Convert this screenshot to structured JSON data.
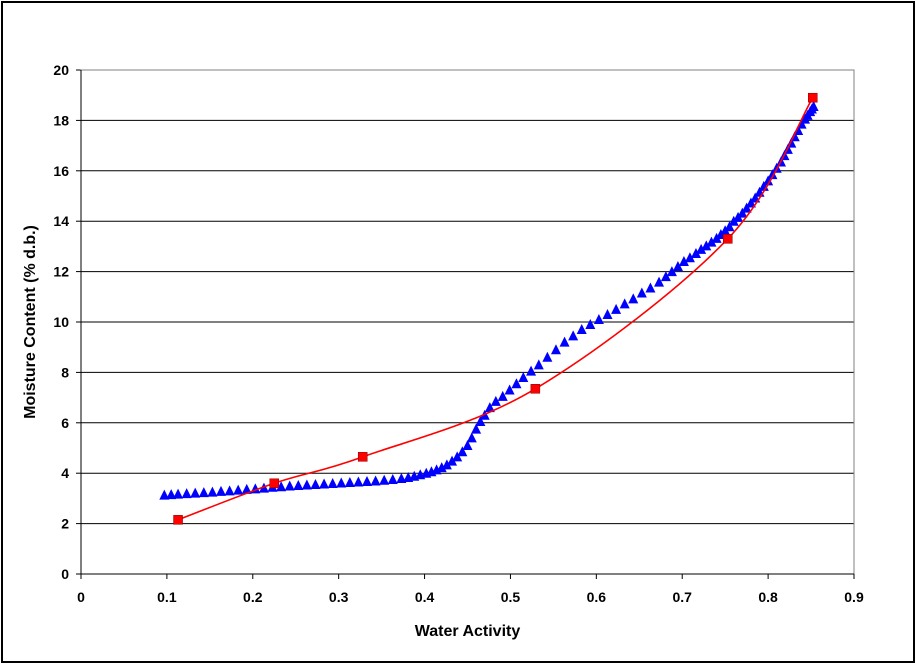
{
  "chart_data": {
    "type": "scatter",
    "title": "",
    "xlabel": "Water Activity",
    "ylabel": "Moisture Content (% d.b.)",
    "xlim": [
      0,
      0.9
    ],
    "ylim": [
      0,
      20
    ],
    "xticks": [
      "0",
      "0.1",
      "0.2",
      "0.3",
      "0.4",
      "0.5",
      "0.6",
      "0.7",
      "0.8",
      "0.9"
    ],
    "yticks": [
      "0",
      "2",
      "4",
      "6",
      "8",
      "10",
      "12",
      "14",
      "16",
      "18",
      "20"
    ],
    "grid": "horizontal",
    "legend": "none",
    "series": [
      {
        "marker": "triangle",
        "color": "#0000ff",
        "line": false,
        "x": [
          0.097,
          0.105,
          0.113,
          0.123,
          0.133,
          0.143,
          0.153,
          0.163,
          0.173,
          0.183,
          0.193,
          0.203,
          0.213,
          0.223,
          0.233,
          0.243,
          0.253,
          0.263,
          0.273,
          0.283,
          0.293,
          0.303,
          0.313,
          0.323,
          0.333,
          0.343,
          0.353,
          0.363,
          0.373,
          0.381,
          0.388,
          0.395,
          0.402,
          0.408,
          0.414,
          0.42,
          0.426,
          0.432,
          0.438,
          0.444,
          0.45,
          0.455,
          0.46,
          0.465,
          0.47,
          0.476,
          0.483,
          0.491,
          0.499,
          0.507,
          0.515,
          0.524,
          0.533,
          0.543,
          0.553,
          0.563,
          0.573,
          0.583,
          0.593,
          0.603,
          0.613,
          0.623,
          0.633,
          0.643,
          0.653,
          0.663,
          0.673,
          0.681,
          0.688,
          0.695,
          0.702,
          0.709,
          0.716,
          0.722,
          0.728,
          0.734,
          0.74,
          0.745,
          0.75,
          0.755,
          0.76,
          0.765,
          0.77,
          0.775,
          0.78,
          0.785,
          0.79,
          0.795,
          0.8,
          0.805,
          0.81,
          0.815,
          0.819,
          0.823,
          0.827,
          0.831,
          0.835,
          0.839,
          0.843,
          0.846,
          0.849,
          0.851,
          0.853
        ],
        "y": [
          3.13,
          3.15,
          3.17,
          3.19,
          3.21,
          3.23,
          3.25,
          3.28,
          3.3,
          3.33,
          3.36,
          3.38,
          3.41,
          3.44,
          3.46,
          3.49,
          3.51,
          3.53,
          3.55,
          3.57,
          3.59,
          3.61,
          3.63,
          3.65,
          3.67,
          3.69,
          3.72,
          3.75,
          3.79,
          3.83,
          3.88,
          3.94,
          4.0,
          4.06,
          4.13,
          4.22,
          4.33,
          4.48,
          4.65,
          4.85,
          5.1,
          5.4,
          5.75,
          6.05,
          6.3,
          6.6,
          6.85,
          7.05,
          7.3,
          7.55,
          7.8,
          8.05,
          8.3,
          8.6,
          8.9,
          9.2,
          9.45,
          9.7,
          9.9,
          10.1,
          10.3,
          10.5,
          10.72,
          10.92,
          11.15,
          11.35,
          11.58,
          11.8,
          12.0,
          12.2,
          12.4,
          12.55,
          12.72,
          12.88,
          13.02,
          13.17,
          13.32,
          13.47,
          13.62,
          13.78,
          14.0,
          14.15,
          14.32,
          14.52,
          14.72,
          14.92,
          15.15,
          15.38,
          15.6,
          15.85,
          16.1,
          16.35,
          16.6,
          16.85,
          17.1,
          17.35,
          17.6,
          17.85,
          18.05,
          18.2,
          18.35,
          18.45,
          18.55
        ]
      },
      {
        "marker": "square",
        "color": "#ff0000",
        "line": true,
        "x": [
          0.113,
          0.225,
          0.328,
          0.529,
          0.753,
          0.852
        ],
        "y": [
          2.15,
          3.6,
          4.65,
          7.35,
          13.3,
          18.9
        ]
      }
    ]
  }
}
